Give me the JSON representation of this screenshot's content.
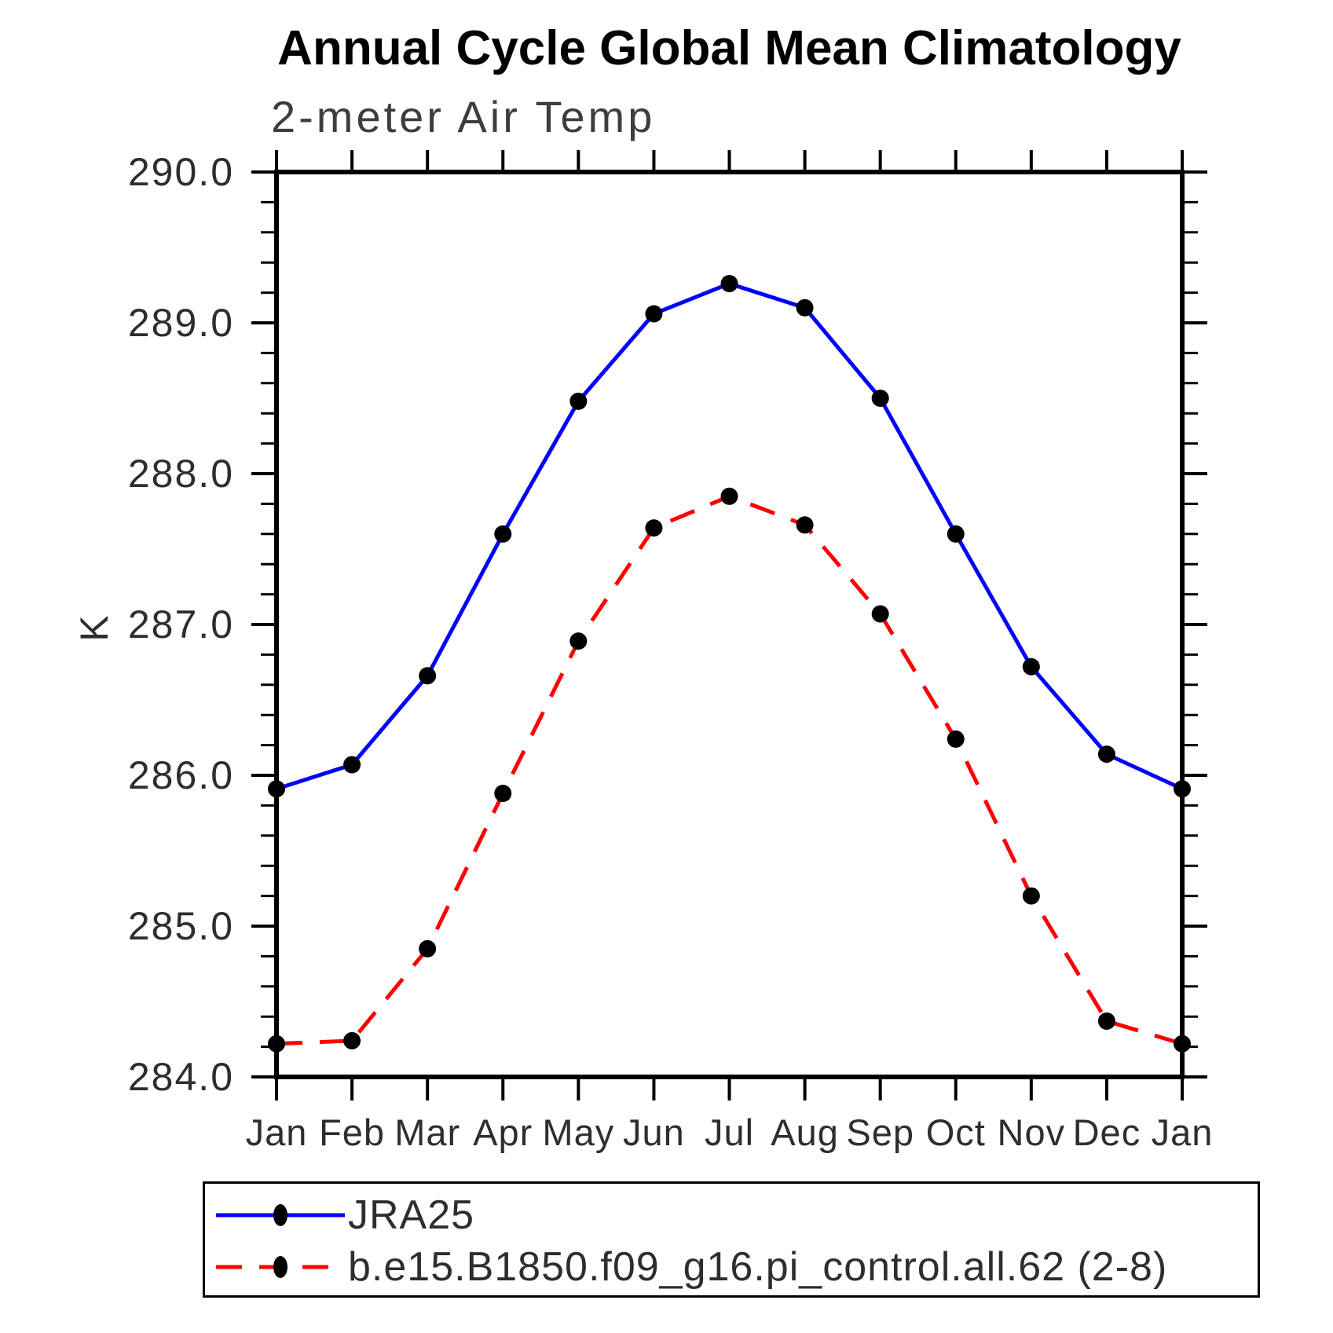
{
  "chart_data": {
    "type": "line",
    "title": "Annual Cycle Global Mean Climatology",
    "subtitle": "2-meter Air Temp",
    "ylabel": "K",
    "xlabel": "",
    "categories": [
      "Jan",
      "Feb",
      "Mar",
      "Apr",
      "May",
      "Jun",
      "Jul",
      "Aug",
      "Sep",
      "Oct",
      "Nov",
      "Dec",
      "Jan"
    ],
    "series": [
      {
        "name": "JRA25",
        "color": "#0000ff",
        "line_style": "solid",
        "marker": "filled-circle",
        "marker_color": "#000000",
        "values": [
          285.91,
          286.07,
          286.66,
          287.6,
          288.48,
          289.06,
          289.26,
          289.1,
          288.5,
          287.6,
          286.72,
          286.14,
          285.91
        ]
      },
      {
        "name": "b.e15.B1850.f09_g16.pi_control.all.62 (2-8)",
        "color": "#ff0000",
        "line_style": "dashed",
        "marker": "filled-circle",
        "marker_color": "#000000",
        "values": [
          284.22,
          284.24,
          284.85,
          285.88,
          286.89,
          287.64,
          287.85,
          287.66,
          287.07,
          286.24,
          285.2,
          284.37,
          284.22
        ]
      }
    ],
    "ylim": [
      284.0,
      290.0
    ],
    "ytick_step": 1.0,
    "ytick_minor_step": 0.2,
    "ytick_labels": [
      "284.0",
      "285.0",
      "286.0",
      "287.0",
      "288.0",
      "289.0",
      "290.0"
    ],
    "grid": false,
    "legend_position": "bottom-left",
    "axis_color": "#000000",
    "background_color": "#ffffff"
  }
}
